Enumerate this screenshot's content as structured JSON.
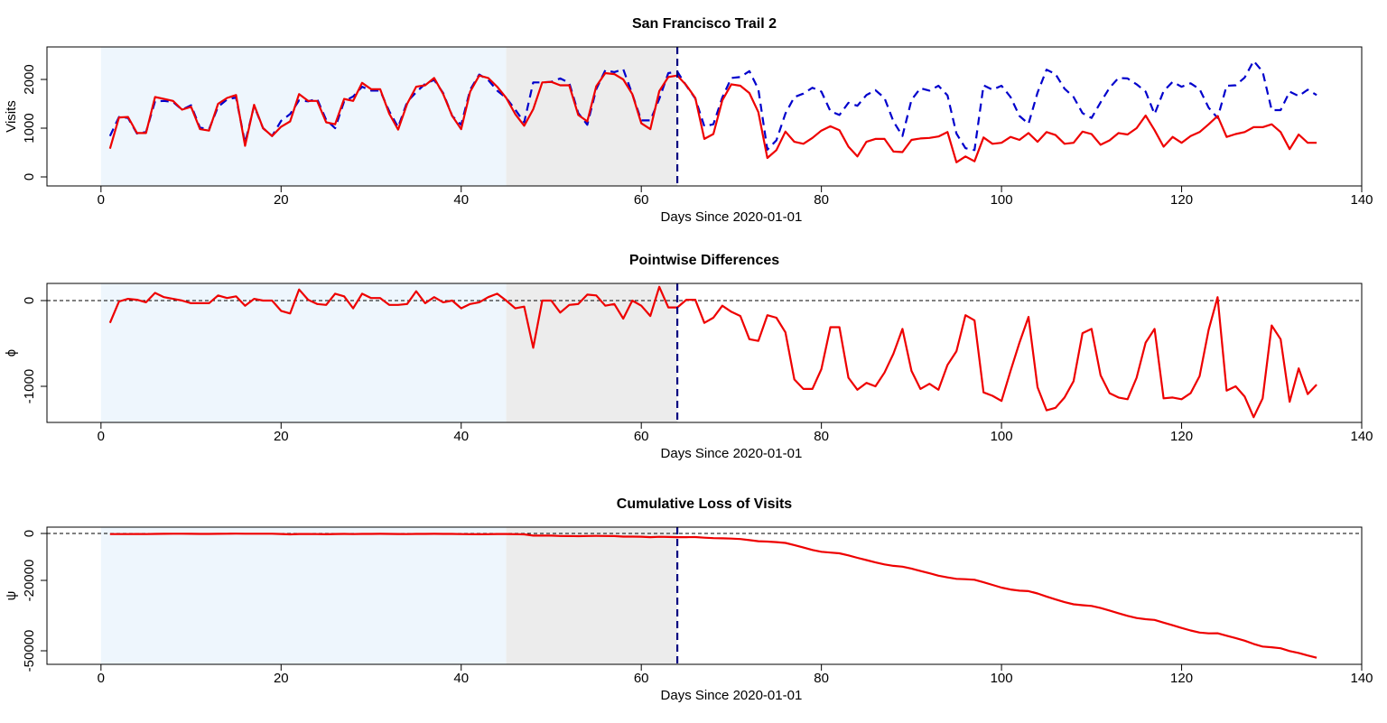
{
  "chart_data": [
    {
      "type": "line",
      "title": "San Francisco Trail 2",
      "x_label": "Days Since 2020-01-01",
      "y_label": "Visits",
      "x": [
        1,
        2,
        3,
        4,
        5,
        6,
        7,
        8,
        9,
        10,
        11,
        12,
        13,
        14,
        15,
        16,
        17,
        18,
        19,
        20,
        21,
        22,
        23,
        24,
        25,
        26,
        27,
        28,
        29,
        30,
        31,
        32,
        33,
        34,
        35,
        36,
        37,
        38,
        39,
        40,
        41,
        42,
        43,
        44,
        45,
        46,
        47,
        48,
        49,
        50,
        51,
        52,
        53,
        54,
        55,
        56,
        57,
        58,
        59,
        60,
        61,
        62,
        63,
        64,
        65,
        66,
        67,
        68,
        69,
        70,
        71,
        72,
        73,
        74,
        75,
        76,
        77,
        78,
        79,
        80,
        81,
        82,
        83,
        84,
        85,
        86,
        87,
        88,
        89,
        90,
        91,
        92,
        93,
        94,
        95,
        96,
        97,
        98,
        99,
        100,
        101,
        102,
        103,
        104,
        105,
        106,
        107,
        108,
        109,
        110,
        111,
        112,
        113,
        114,
        115,
        116,
        117,
        118,
        119,
        120,
        121,
        122,
        123,
        124,
        125,
        126,
        127,
        128,
        129,
        130,
        131,
        132,
        133,
        134,
        135
      ],
      "series": [
        {
          "color": "#0000cc",
          "dashed": true,
          "values": [
            840,
            1230,
            1210,
            890,
            920,
            1550,
            1560,
            1540,
            1380,
            1470,
            1010,
            980,
            1440,
            1590,
            1630,
            700,
            1460,
            1000,
            840,
            1150,
            1290,
            1570,
            1550,
            1600,
            1170,
            1000,
            1550,
            1650,
            1850,
            1770,
            1770,
            1350,
            1020,
            1540,
            1740,
            1910,
            1990,
            1720,
            1250,
            1070,
            1790,
            2100,
            1990,
            1770,
            1620,
            1380,
            1120,
            1940,
            1940,
            1950,
            2020,
            1930,
            1310,
            1070,
            1800,
            2190,
            2150,
            2210,
            1700,
            1160,
            1160,
            1600,
            2130,
            2160,
            1870,
            1610,
            1040,
            1080,
            1630,
            2030,
            2050,
            2170,
            1800,
            560,
            750,
            1300,
            1640,
            1710,
            1830,
            1750,
            1350,
            1270,
            1520,
            1460,
            1680,
            1780,
            1620,
            1140,
            840,
            1580,
            1820,
            1770,
            1870,
            1670,
            890,
            590,
            550,
            1880,
            1790,
            1870,
            1640,
            1250,
            1090,
            1730,
            2200,
            2110,
            1810,
            1640,
            1310,
            1210,
            1530,
            1830,
            2030,
            2020,
            1900,
            1750,
            1290,
            1760,
            1950,
            1850,
            1920,
            1800,
            1420,
            1210,
            1870,
            1880,
            2040,
            2380,
            2160,
            1370,
            1370,
            1750,
            1660,
            1790,
            1680
          ]
        },
        {
          "color": "#ee0000",
          "dashed": false,
          "values": [
            580,
            1220,
            1230,
            900,
            900,
            1640,
            1600,
            1560,
            1380,
            1440,
            980,
            950,
            1500,
            1620,
            1680,
            640,
            1480,
            1000,
            840,
            1030,
            1140,
            1700,
            1560,
            1560,
            1120,
            1080,
            1600,
            1560,
            1930,
            1800,
            1800,
            1300,
            970,
            1500,
            1850,
            1880,
            2030,
            1700,
            1250,
            980,
            1750,
            2080,
            2030,
            1850,
            1620,
            1290,
            1050,
            1390,
            1940,
            1950,
            1880,
            1880,
            1270,
            1140,
            1860,
            2130,
            2110,
            2000,
            1700,
            1100,
            980,
            1760,
            2050,
            2080,
            1880,
            1620,
            780,
            880,
            1570,
            1900,
            1870,
            1720,
            1330,
            390,
            550,
            930,
            720,
            680,
            800,
            950,
            1040,
            960,
            620,
            420,
            720,
            780,
            780,
            520,
            510,
            760,
            790,
            800,
            830,
            920,
            300,
            420,
            320,
            810,
            680,
            700,
            820,
            760,
            900,
            720,
            920,
            860,
            680,
            700,
            930,
            880,
            660,
            750,
            900,
            870,
            1000,
            1260,
            960,
            620,
            820,
            700,
            840,
            920,
            1080,
            1250,
            820,
            880,
            920,
            1020,
            1020,
            1080,
            920,
            570,
            870,
            700,
            700
          ]
        }
      ],
      "xlim": [
        -6,
        140
      ],
      "xticks": [
        0,
        20,
        40,
        60,
        80,
        100,
        120,
        140
      ],
      "ylim": [
        -185,
        2667
      ],
      "yticks": [
        0,
        1000,
        2000
      ],
      "shaded_regions": [
        {
          "start": 0,
          "end": 45,
          "color": "#eef6fd"
        },
        {
          "start": 45,
          "end": 64,
          "color": "#ececec"
        }
      ],
      "vline": 64
    },
    {
      "type": "line",
      "title": "Pointwise Differences",
      "x_label": "Days Since 2020-01-01",
      "y_label": "ϕ",
      "x": [
        1,
        2,
        3,
        4,
        5,
        6,
        7,
        8,
        9,
        10,
        11,
        12,
        13,
        14,
        15,
        16,
        17,
        18,
        19,
        20,
        21,
        22,
        23,
        24,
        25,
        26,
        27,
        28,
        29,
        30,
        31,
        32,
        33,
        34,
        35,
        36,
        37,
        38,
        39,
        40,
        41,
        42,
        43,
        44,
        45,
        46,
        47,
        48,
        49,
        50,
        51,
        52,
        53,
        54,
        55,
        56,
        57,
        58,
        59,
        60,
        61,
        62,
        63,
        64,
        65,
        66,
        67,
        68,
        69,
        70,
        71,
        72,
        73,
        74,
        75,
        76,
        77,
        78,
        79,
        80,
        81,
        82,
        83,
        84,
        85,
        86,
        87,
        88,
        89,
        90,
        91,
        92,
        93,
        94,
        95,
        96,
        97,
        98,
        99,
        100,
        101,
        102,
        103,
        104,
        105,
        106,
        107,
        108,
        109,
        110,
        111,
        112,
        113,
        114,
        115,
        116,
        117,
        118,
        119,
        120,
        121,
        122,
        123,
        124,
        125,
        126,
        127,
        128,
        129,
        130,
        131,
        132,
        133,
        134,
        135
      ],
      "series": [
        {
          "color": "#ee0000",
          "dashed": false,
          "values": [
            -260,
            -10,
            20,
            10,
            -20,
            90,
            40,
            20,
            0,
            -30,
            -30,
            -30,
            60,
            30,
            50,
            -60,
            20,
            0,
            0,
            -120,
            -150,
            130,
            10,
            -40,
            -50,
            80,
            50,
            -90,
            80,
            30,
            30,
            -50,
            -50,
            -40,
            110,
            -30,
            40,
            -20,
            0,
            -90,
            -40,
            -20,
            40,
            80,
            0,
            -90,
            -70,
            -550,
            0,
            0,
            -140,
            -50,
            -40,
            70,
            60,
            -60,
            -40,
            -210,
            0,
            -60,
            -180,
            160,
            -80,
            -80,
            10,
            10,
            -260,
            -200,
            -60,
            -130,
            -180,
            -450,
            -470,
            -170,
            -200,
            -370,
            -920,
            -1030,
            -1030,
            -800,
            -310,
            -310,
            -900,
            -1040,
            -960,
            -1000,
            -840,
            -620,
            -330,
            -820,
            -1030,
            -970,
            -1040,
            -750,
            -590,
            -170,
            -230,
            -1070,
            -1110,
            -1170,
            -820,
            -490,
            -190,
            -1010,
            -1280,
            -1250,
            -1130,
            -940,
            -380,
            -330,
            -870,
            -1080,
            -1130,
            -1150,
            -900,
            -490,
            -330,
            -1140,
            -1130,
            -1150,
            -1080,
            -880,
            -340,
            40,
            -1050,
            -1000,
            -1120,
            -1360,
            -1140,
            -290,
            -450,
            -1180,
            -790,
            -1090,
            -980
          ]
        }
      ],
      "xlim": [
        -6,
        140
      ],
      "xticks": [
        0,
        20,
        40,
        60,
        80,
        100,
        120,
        140
      ],
      "ylim": [
        -1421,
        200
      ],
      "yticks": [
        -1000,
        0
      ],
      "shaded_regions": [
        {
          "start": 0,
          "end": 45,
          "color": "#eef6fd"
        },
        {
          "start": 45,
          "end": 64,
          "color": "#ececec"
        }
      ],
      "vline": 64,
      "hline": 0
    },
    {
      "type": "line",
      "title": "Cumulative Loss of Visits",
      "x_label": "Days Since 2020-01-01",
      "y_label": "ψ",
      "x": [
        1,
        2,
        3,
        4,
        5,
        6,
        7,
        8,
        9,
        10,
        11,
        12,
        13,
        14,
        15,
        16,
        17,
        18,
        19,
        20,
        21,
        22,
        23,
        24,
        25,
        26,
        27,
        28,
        29,
        30,
        31,
        32,
        33,
        34,
        35,
        36,
        37,
        38,
        39,
        40,
        41,
        42,
        43,
        44,
        45,
        46,
        47,
        48,
        49,
        50,
        51,
        52,
        53,
        54,
        55,
        56,
        57,
        58,
        59,
        60,
        61,
        62,
        63,
        64,
        65,
        66,
        67,
        68,
        69,
        70,
        71,
        72,
        73,
        74,
        75,
        76,
        77,
        78,
        79,
        80,
        81,
        82,
        83,
        84,
        85,
        86,
        87,
        88,
        89,
        90,
        91,
        92,
        93,
        94,
        95,
        96,
        97,
        98,
        99,
        100,
        101,
        102,
        103,
        104,
        105,
        106,
        107,
        108,
        109,
        110,
        111,
        112,
        113,
        114,
        115,
        116,
        117,
        118,
        119,
        120,
        121,
        122,
        123,
        124,
        125,
        126,
        127,
        128,
        129,
        130,
        131,
        132,
        133,
        134,
        135
      ],
      "series": [
        {
          "color": "#ee0000",
          "dashed": false,
          "values": [
            -260,
            -270,
            -250,
            -240,
            -260,
            -170,
            -130,
            -110,
            -110,
            -140,
            -170,
            -200,
            -140,
            -110,
            -60,
            -120,
            -100,
            -100,
            -100,
            -220,
            -370,
            -240,
            -230,
            -270,
            -320,
            -240,
            -190,
            -280,
            -200,
            -170,
            -140,
            -190,
            -240,
            -280,
            -170,
            -200,
            -160,
            -180,
            -180,
            -270,
            -310,
            -330,
            -290,
            -210,
            -210,
            -300,
            -370,
            -920,
            -920,
            -920,
            -1060,
            -1110,
            -1150,
            -1080,
            -1020,
            -1080,
            -1120,
            -1330,
            -1330,
            -1390,
            -1570,
            -1410,
            -1490,
            -1570,
            -1560,
            -1550,
            -1810,
            -2010,
            -2070,
            -2200,
            -2380,
            -2830,
            -3300,
            -3470,
            -3670,
            -4040,
            -4960,
            -5990,
            -7020,
            -7820,
            -8130,
            -8440,
            -9340,
            -10380,
            -11340,
            -12340,
            -13180,
            -13800,
            -14130,
            -14950,
            -15980,
            -16950,
            -17990,
            -18740,
            -19330,
            -19500,
            -19730,
            -20800,
            -21910,
            -23080,
            -23900,
            -24390,
            -24580,
            -25590,
            -26870,
            -28120,
            -29250,
            -30190,
            -30570,
            -30900,
            -31770,
            -32850,
            -33980,
            -35130,
            -36030,
            -36520,
            -36850,
            -37990,
            -39120,
            -40270,
            -41350,
            -42230,
            -42570,
            -42530,
            -43580,
            -44580,
            -45700,
            -47060,
            -48200,
            -48490,
            -48940,
            -50120,
            -50910,
            -52000,
            -52980
          ]
        }
      ],
      "xlim": [
        -6,
        140
      ],
      "xticks": [
        0,
        20,
        40,
        60,
        80,
        100,
        120,
        140
      ],
      "ylim": [
        -55770,
        2700
      ],
      "yticks": [
        -50000,
        -20000,
        0
      ],
      "shaded_regions": [
        {
          "start": 0,
          "end": 45,
          "color": "#eef6fd"
        },
        {
          "start": 45,
          "end": 64,
          "color": "#ececec"
        }
      ],
      "vline": 64,
      "hline": 0
    }
  ]
}
